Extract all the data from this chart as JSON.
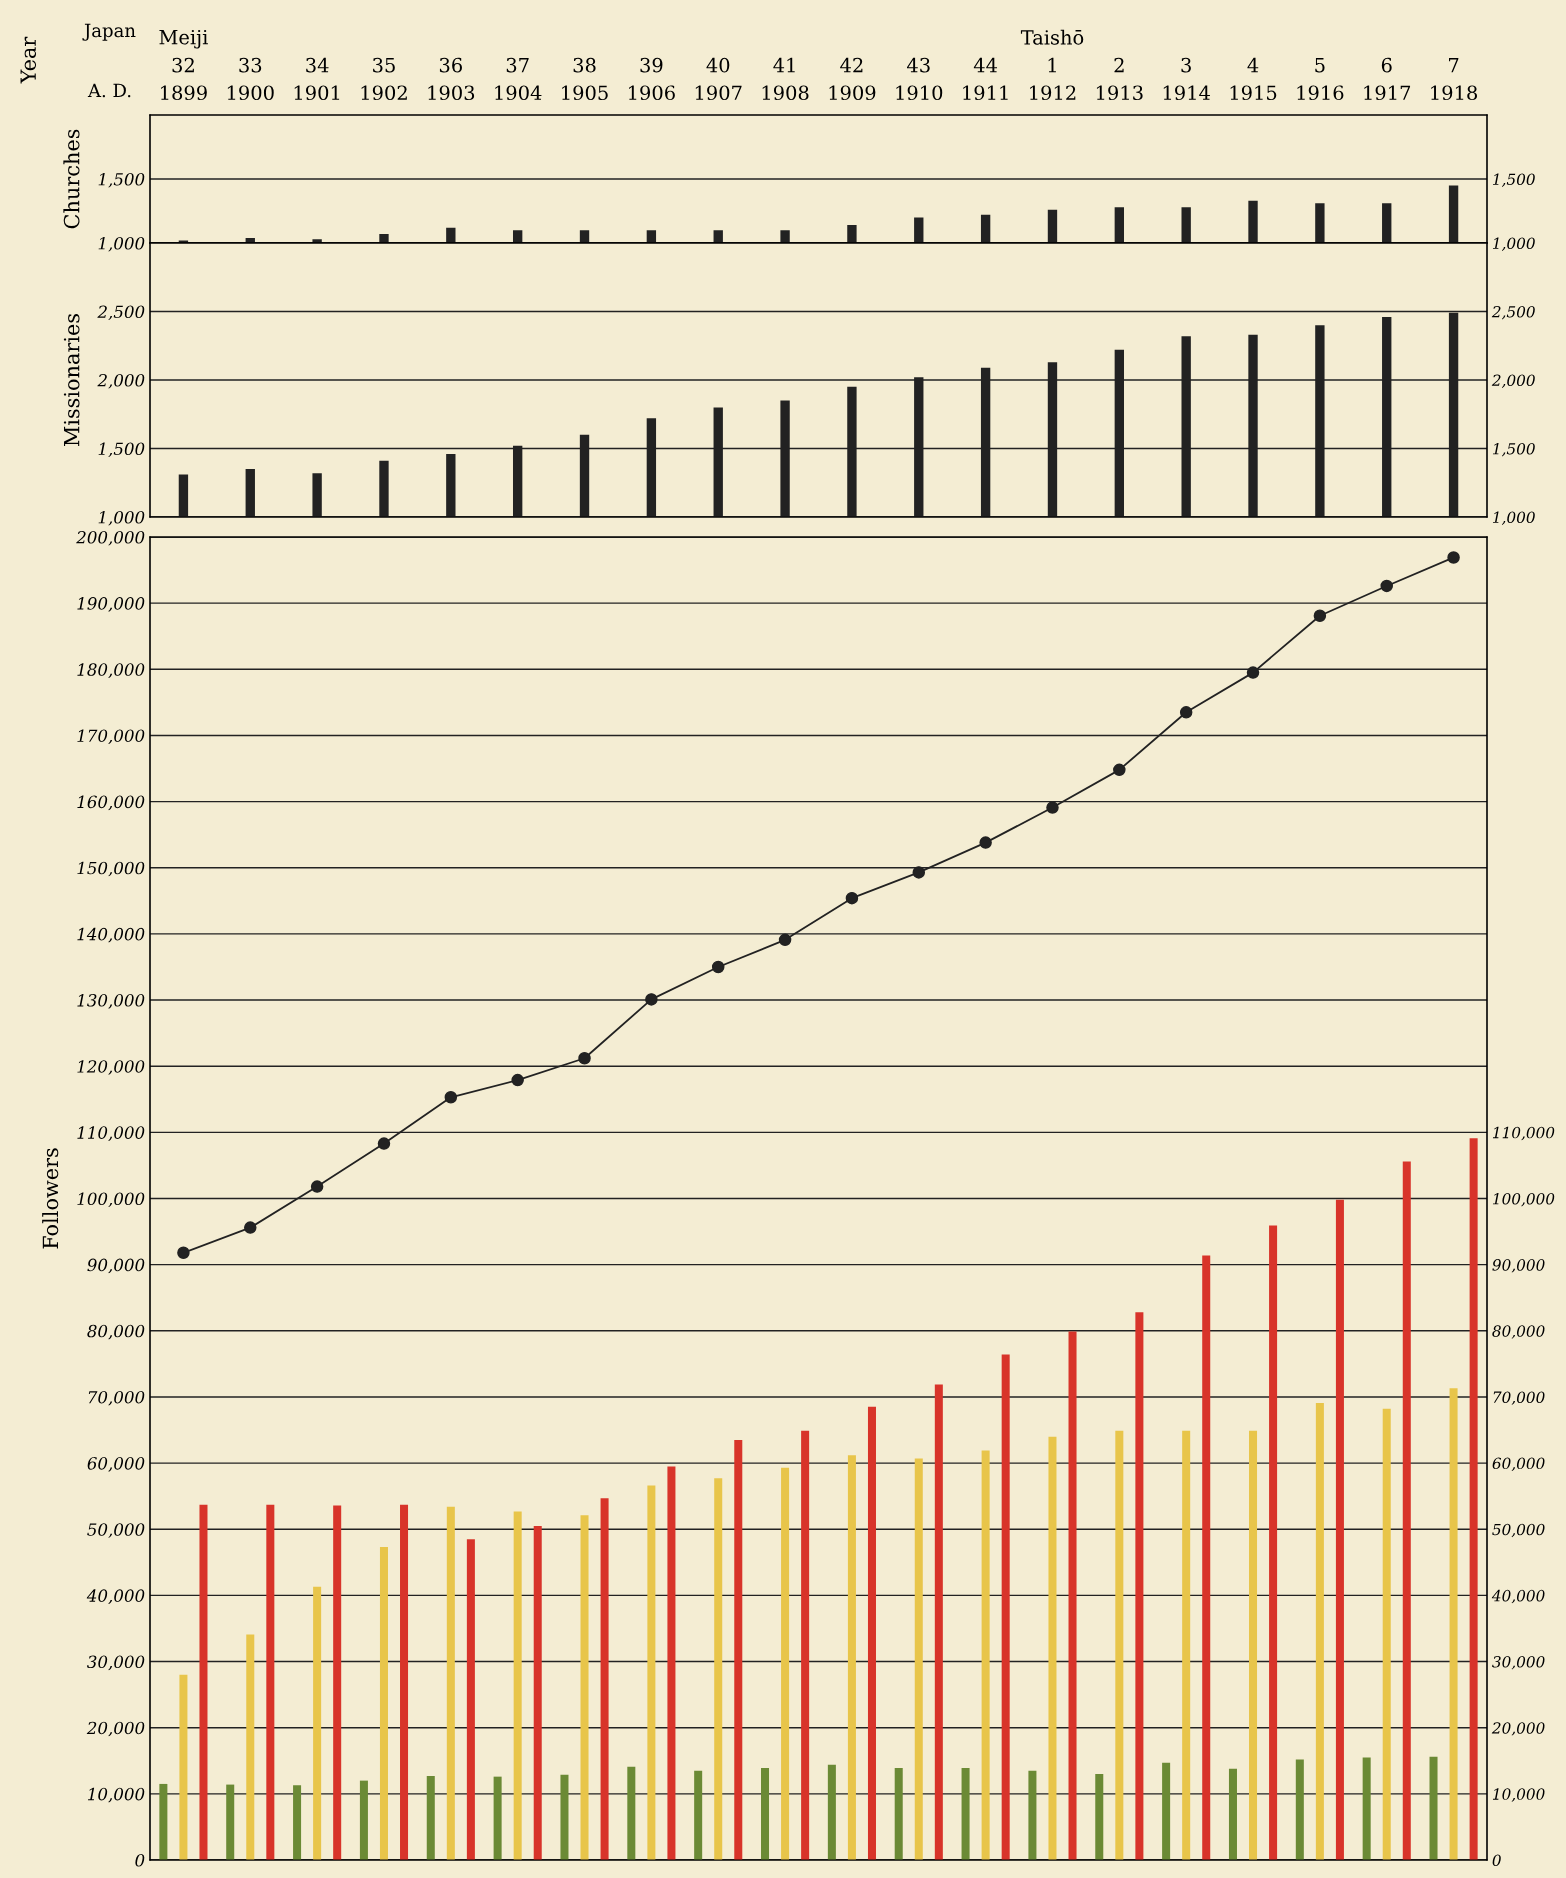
{
  "chart_data": [
    {
      "type": "bar",
      "ylabel": "Churches",
      "annotations": [
        "Year",
        "Japan",
        "A. D."
      ],
      "categories": [
        "Meiji\n32\n1899",
        "33\n1900",
        "34\n1901",
        "35\n1902",
        "36\n1903",
        "37\n1904",
        "38\n1905",
        "39\n1906",
        "40\n1907",
        "41\n1908",
        "42\n1909",
        "43\n1910",
        "44\n1911",
        "Taishō\n1\n1912",
        "2\n1913",
        "3\n1914",
        "4\n1915",
        "5\n1916",
        "6\n1917",
        "7\n1918"
      ],
      "series": [
        {
          "color": "#222222",
          "values": [
            1020,
            1040,
            1030,
            1070,
            1120,
            1100,
            1100,
            1100,
            1100,
            1100,
            1140,
            1200,
            1220,
            1260,
            1280,
            1280,
            1330,
            1310,
            1310,
            1450
          ]
        }
      ],
      "ylim": [
        1000,
        2000
      ],
      "yticks": [
        {
          "value": 1000,
          "label": "1,000"
        },
        {
          "value": 1500,
          "label": "1,500"
        }
      ],
      "y2lim": [
        1000,
        2000
      ],
      "y2ticks": [
        {
          "value": 1000,
          "label": "1,000"
        },
        {
          "value": 1500,
          "label": "1,500"
        }
      ],
      "grid": true
    },
    {
      "type": "bar",
      "ylabel": "Missionaries",
      "tick_labels": "y",
      "categories": [
        null,
        null,
        null,
        null,
        null,
        null,
        null,
        null,
        null,
        null,
        null,
        null,
        null,
        null,
        null,
        null,
        null,
        null,
        null,
        null
      ],
      "series": [
        {
          "color": "#222222",
          "values": [
            1310,
            1350,
            1320,
            1410,
            1460,
            1520,
            1600,
            1720,
            1800,
            1850,
            1950,
            2020,
            2090,
            2130,
            2220,
            2320,
            2330,
            2400,
            2460,
            2490
          ]
        }
      ],
      "ylim": [
        1000,
        3000
      ],
      "yticks": [
        {
          "value": 1000,
          "label": "1,000"
        },
        {
          "value": 1500,
          "label": "1,500"
        },
        {
          "value": 2000,
          "label": "2,000"
        },
        {
          "value": 2500,
          "label": "2,500"
        }
      ],
      "y2lim": [
        1000,
        3000
      ],
      "y2ticks": [
        {
          "value": 1000,
          "label": "1,000"
        },
        {
          "value": 1500,
          "label": "1,500"
        },
        {
          "value": 2000,
          "label": "2,000"
        },
        {
          "value": 2500,
          "label": "2,500"
        }
      ],
      "grid": true
    },
    {
      "type": "bar",
      "ylabel": "Followers",
      "tick_labels": "y",
      "categories": [
        null,
        null,
        null,
        null,
        null,
        null,
        null,
        null,
        null,
        null,
        null,
        null,
        null,
        null,
        null,
        null,
        null,
        null,
        null,
        null
      ],
      "series": [
        {
          "color": "#6b8a35",
          "values": [
            11500,
            11400,
            11300,
            12000,
            12700,
            12600,
            12900,
            14100,
            13500,
            13900,
            14400,
            13900,
            13900,
            13500,
            13000,
            14700,
            13800,
            15200,
            15500,
            15600
          ]
        },
        {
          "color": "#e8c54a",
          "values": [
            28000,
            34100,
            41300,
            47300,
            53400,
            52700,
            52100,
            56600,
            57700,
            59300,
            61200,
            60700,
            61900,
            64000,
            64900,
            64900,
            64900,
            69100,
            68200,
            71300
          ]
        },
        {
          "color": "#d8342a",
          "values": [
            53700,
            53700,
            53600,
            53700,
            48500,
            50500,
            54700,
            59500,
            63500,
            64900,
            68500,
            71900,
            76400,
            79900,
            82800,
            91400,
            95900,
            99800,
            105600,
            109100
          ]
        },
        {
          "type": "line",
          "color": "#222222",
          "marker": "circle",
          "line_style": "solid",
          "values": [
            91800,
            95600,
            101800,
            108300,
            115300,
            117900,
            121200,
            130100,
            135000,
            139100,
            145400,
            149300,
            153800,
            159100,
            164800,
            173500,
            179500,
            188100,
            192600,
            196900
          ]
        }
      ],
      "ylim": [
        0,
        200000
      ],
      "yticks": [
        0,
        {
          "value": 10000,
          "label": "10,000"
        },
        {
          "value": 20000,
          "label": "20,000"
        },
        {
          "value": 30000,
          "label": "30,000"
        },
        {
          "value": 40000,
          "label": "40,000"
        },
        {
          "value": 50000,
          "label": "50,000"
        },
        {
          "value": 60000,
          "label": "60,000"
        },
        {
          "value": 70000,
          "label": "70,000"
        },
        {
          "value": 80000,
          "label": "80,000"
        },
        {
          "value": 90000,
          "label": "90,000"
        },
        {
          "value": 100000,
          "label": "100,000"
        },
        {
          "value": 110000,
          "label": "110,000"
        },
        {
          "value": 120000,
          "label": "120,000"
        },
        {
          "value": 130000,
          "label": "130,000"
        },
        {
          "value": 140000,
          "label": "140,000"
        },
        {
          "value": 150000,
          "label": "150,000"
        },
        {
          "value": 160000,
          "label": "160,000"
        },
        {
          "value": 170000,
          "label": "170,000"
        },
        {
          "value": 180000,
          "label": "180,000"
        },
        {
          "value": 190000,
          "label": "190,000"
        },
        {
          "value": 200000,
          "label": "200,000"
        }
      ],
      "y2lim": [
        0,
        200000
      ],
      "y2ticks": [
        0,
        {
          "value": 10000,
          "label": "10,000"
        },
        {
          "value": 20000,
          "label": "20,000"
        },
        {
          "value": 30000,
          "label": "30,000"
        },
        {
          "value": 40000,
          "label": "40,000"
        },
        {
          "value": 50000,
          "label": "50,000"
        },
        {
          "value": 60000,
          "label": "60,000"
        },
        {
          "value": 70000,
          "label": "70,000"
        },
        {
          "value": 80000,
          "label": "80,000"
        },
        {
          "value": 90000,
          "label": "90,000"
        },
        {
          "value": 100000,
          "label": "100,000"
        },
        {
          "value": 110000,
          "label": "110,000"
        }
      ],
      "grid": true
    }
  ]
}
